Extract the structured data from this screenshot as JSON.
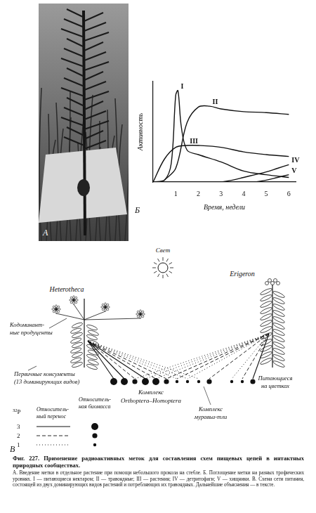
{
  "panel_a": {
    "label": "А"
  },
  "chart_data": {
    "type": "line",
    "label": "Б",
    "y_label": "Активность",
    "x_label": "Время, недели",
    "xlim": [
      0,
      6.3
    ],
    "xticks": [
      1,
      2,
      3,
      4,
      5,
      6
    ],
    "ylim": [
      0,
      110
    ],
    "tick_labels": "x",
    "grid": false,
    "color": "#111111",
    "series": [
      {
        "name": "I",
        "x": [
          0,
          0.5,
          0.8,
          1.0,
          1.1,
          1.25,
          1.5,
          2,
          3,
          4,
          5,
          6
        ],
        "values": [
          0,
          2,
          20,
          95,
          100,
          60,
          35,
          30,
          22,
          12,
          8,
          5
        ]
      },
      {
        "name": "II",
        "x": [
          0.5,
          1,
          1.5,
          2,
          2.5,
          3,
          4,
          5,
          6
        ],
        "values": [
          2,
          15,
          65,
          82,
          83,
          80,
          77,
          76,
          74
        ]
      },
      {
        "name": "III",
        "x": [
          0,
          0.5,
          1,
          1.5,
          2,
          3,
          4,
          5,
          6
        ],
        "values": [
          0,
          25,
          38,
          40,
          40,
          38,
          33,
          30,
          28
        ]
      },
      {
        "name": "IV",
        "x": [
          3,
          3.5,
          4,
          4.5,
          5,
          5.5,
          6
        ],
        "values": [
          0,
          2,
          5,
          8,
          11,
          15,
          19
        ]
      },
      {
        "name": "V",
        "x": [
          4.5,
          5,
          5.5,
          6
        ],
        "values": [
          0,
          2,
          5,
          8
        ]
      }
    ]
  },
  "diagram": {
    "label": "В",
    "light": "Свет",
    "plants": [
      "Heterotheca",
      "Erigeron"
    ],
    "producers_label": [
      "Кодоминант-",
      "ные продуценты"
    ],
    "consumers_label": [
      "Первичные консументы",
      "(13 доминирующих видов)"
    ],
    "consumer_groups": [
      {
        "label": [
          "Комплекс",
          "Orthoptera–Homoptera"
        ],
        "biomass": [
          3,
          3,
          2,
          3,
          3,
          2,
          1,
          1
        ]
      },
      {
        "label": [
          "Комплекс",
          "муравьи-тли"
        ],
        "biomass": [
          1,
          2
        ]
      },
      {
        "label": [
          "Питающиеся",
          "на цветках"
        ],
        "biomass": [
          1,
          1,
          2
        ]
      }
    ],
    "links": [
      {
        "plant": 0,
        "consumer": 0,
        "transfer": 3
      },
      {
        "plant": 0,
        "consumer": 1,
        "transfer": 3
      },
      {
        "plant": 0,
        "consumer": 2,
        "transfer": 2
      },
      {
        "plant": 0,
        "consumer": 3,
        "transfer": 3
      },
      {
        "plant": 0,
        "consumer": 4,
        "transfer": 2
      },
      {
        "plant": 0,
        "consumer": 5,
        "transfer": 2
      },
      {
        "plant": 0,
        "consumer": 6,
        "transfer": 1
      },
      {
        "plant": 0,
        "consumer": 7,
        "transfer": 1
      },
      {
        "plant": 0,
        "consumer": 8,
        "transfer": 1
      },
      {
        "plant": 1,
        "consumer": 2,
        "transfer": 1
      },
      {
        "plant": 1,
        "consumer": 3,
        "transfer": 1
      },
      {
        "plant": 1,
        "consumer": 4,
        "transfer": 1
      },
      {
        "plant": 1,
        "consumer": 5,
        "transfer": 2
      },
      {
        "plant": 1,
        "consumer": 6,
        "transfer": 2
      },
      {
        "plant": 1,
        "consumer": 7,
        "transfer": 1
      },
      {
        "plant": 1,
        "consumer": 9,
        "transfer": 2
      },
      {
        "plant": 1,
        "consumer": 10,
        "transfer": 1
      },
      {
        "plant": 1,
        "consumer": 11,
        "transfer": 2
      },
      {
        "plant": 1,
        "consumer": 12,
        "transfer": 3
      }
    ],
    "legend": {
      "isotope": "32P",
      "transfer_header": [
        "Относитель-",
        "ный перенос"
      ],
      "biomass_header": [
        "Относитель-",
        "ная биомасса"
      ],
      "rows": [
        3,
        2,
        1
      ]
    }
  },
  "caption": {
    "title": "Фиг. 227. Применение радиоактивных меток для составления схем пищевых цепей в интактных природных сообществах.",
    "text": "А. Введение метки в отдельное растение при помощи небольшого прокола на стебле. Б. Поглощение метки на разных трофических уровнях. I — питающиеся нектаром; II — травоядные; III — растения; IV — детритофаги; V — хищники. В. Схема сети питания, состоящей из двух доминирующих видов растений и потребляющих их травоядных. Дальнейшие объяснения — в тексте."
  }
}
